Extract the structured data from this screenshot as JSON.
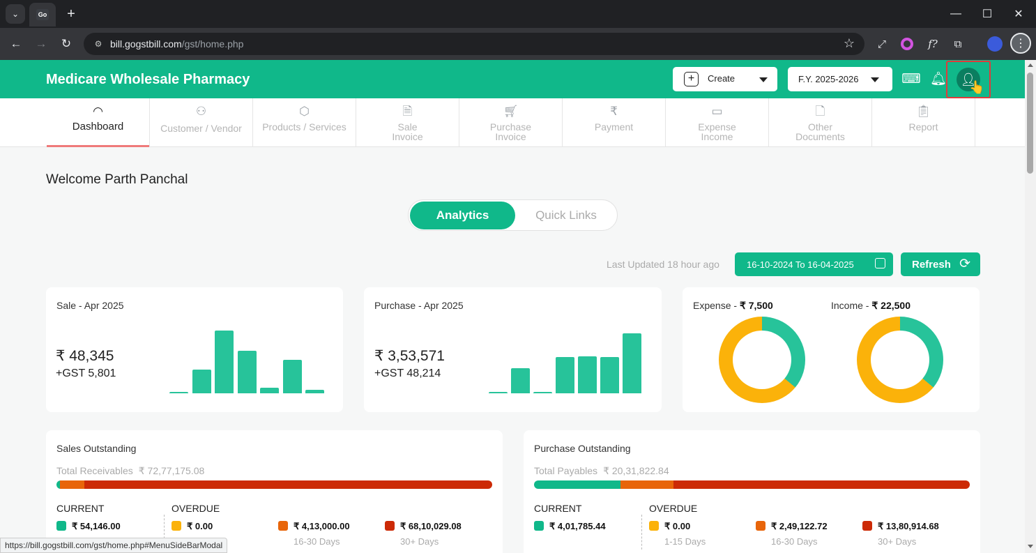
{
  "browser": {
    "tab_favicon": "Go",
    "url_host": "bill.gogstbill.com",
    "url_path": "/gst/home.php",
    "status_url": "https://bill.gogstbill.com/gst/home.php#MenuSideBarModal"
  },
  "header": {
    "title": "Medicare Wholesale Pharmacy",
    "create_label": "Create",
    "fy_label": "F.Y. 2025-2026"
  },
  "nav": {
    "items": [
      {
        "label": "Dashboard",
        "icon": "speedometer-icon"
      },
      {
        "label": "Customer / Vendor",
        "icon": "users-icon"
      },
      {
        "label": "Products / Services",
        "icon": "box-icon"
      },
      {
        "label": "Sale Invoice",
        "icon": "invoice-icon"
      },
      {
        "label": "Purchase Invoice",
        "icon": "cart-icon"
      },
      {
        "label": "Payment",
        "icon": "rupee-icon"
      },
      {
        "label": "Expense Income",
        "icon": "expense-icon"
      },
      {
        "label": "Other Documents",
        "icon": "document-icon"
      },
      {
        "label": "Report",
        "icon": "clipboard-icon"
      }
    ]
  },
  "main": {
    "welcome": "Welcome Parth Panchal",
    "tabs": {
      "active": "Analytics",
      "inactive": "Quick Links"
    },
    "last_updated": "Last Updated 18 hour ago",
    "date_range": "16-10-2024 To 16-04-2025",
    "refresh_label": "Refresh"
  },
  "sale_card": {
    "title": "Sale - Apr 2025",
    "amount": "₹ 48,345",
    "gst": "+GST 5,801"
  },
  "purchase_card": {
    "title": "Purchase - Apr 2025",
    "amount": "₹ 3,53,571",
    "gst": "+GST 48,214"
  },
  "expense_income": {
    "expense_label": "Expense - ",
    "expense_value": "₹ 7,500",
    "income_label": "Income - ",
    "income_value": "₹ 22,500"
  },
  "sales_outstanding": {
    "title": "Sales Outstanding",
    "total_label": "Total Receivables",
    "total_value": "₹ 72,77,175.08",
    "current_hdr": "CURRENT",
    "overdue_hdr": "OVERDUE",
    "current_value": "₹ 54,146.00",
    "b1_value": "₹ 0.00",
    "b2_value": "₹ 4,13,000.00",
    "b2_days": "16-30 Days",
    "b3_value": "₹ 68,10,029.08",
    "b3_days": "30+ Days"
  },
  "purchase_outstanding": {
    "title": "Purchase Outstanding",
    "total_label": "Total Payables",
    "total_value": "₹ 20,31,822.84",
    "current_hdr": "CURRENT",
    "overdue_hdr": "OVERDUE",
    "current_value": "₹ 4,01,785.44",
    "b1_value": "₹ 0.00",
    "b1_days": "1-15 Days",
    "b2_value": "₹ 2,49,122.72",
    "b2_days": "16-30 Days",
    "b3_value": "₹ 13,80,914.68",
    "b3_days": "30+ Days"
  },
  "chart_data": [
    {
      "type": "bar",
      "title": "Sale - Apr 2025",
      "values": [
        0.02,
        0.38,
        1.0,
        0.68,
        0.09,
        0.53,
        0.06
      ],
      "color": "#27c39a"
    },
    {
      "type": "bar",
      "title": "Purchase - Apr 2025",
      "values": [
        0.02,
        0.42,
        0.02,
        0.6,
        0.62,
        0.6,
        1.0
      ],
      "color": "#27c39a"
    },
    {
      "type": "pie",
      "title": "Expense",
      "values": [
        0.36,
        0.64
      ],
      "colors": [
        "#27c39a",
        "#fbb20a"
      ]
    },
    {
      "type": "pie",
      "title": "Income",
      "values": [
        0.36,
        0.64
      ],
      "colors": [
        "#27c39a",
        "#fbb20a"
      ]
    }
  ],
  "colors": {
    "brand": "#10b88a",
    "bar": "#27c39a",
    "current": "#10b88a",
    "overdue_1_15": "#fbb20a",
    "overdue_16_30": "#e8650a",
    "overdue_30_plus": "#cc2a06"
  },
  "stack_fractions": {
    "sales": [
      0.0074,
      0.0,
      0.0568,
      0.9358
    ],
    "purchase": [
      0.1977,
      0.0,
      0.1226,
      0.6797
    ]
  }
}
